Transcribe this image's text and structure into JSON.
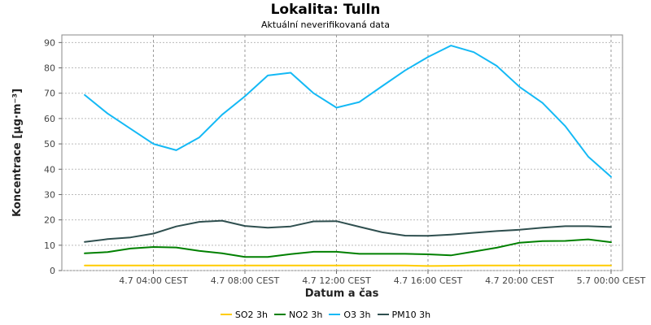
{
  "chart_data": {
    "type": "line",
    "title": "Lokalita: Tulln",
    "subtitle": "Aktuální neverifikovaná data",
    "xlabel": "Datum a čas",
    "ylabel": "Koncentrace [µg·m⁻³]",
    "ylim": [
      0,
      93
    ],
    "yticks": [
      0,
      10,
      20,
      30,
      40,
      50,
      60,
      70,
      80,
      90
    ],
    "xlim_hours": [
      0.0,
      24.5
    ],
    "x": [
      1,
      2,
      3,
      4,
      5,
      6,
      7,
      8,
      9,
      10,
      11,
      12,
      13,
      14,
      15,
      16,
      17,
      18,
      19,
      20,
      21,
      22,
      23,
      24
    ],
    "xtick_hours": [
      4,
      8,
      12,
      16,
      20,
      24
    ],
    "xticks": [
      "4.7 04:00 CEST",
      "4.7 08:00 CEST",
      "4.7 12:00 CEST",
      "4.7 16:00 CEST",
      "4.7 20:00 CEST",
      "5.7 00:00 CEST"
    ],
    "grid": true,
    "legend_position": "bottom",
    "series": [
      {
        "name": "SO2 3h",
        "color": "#ffcc00",
        "values": [
          2,
          2,
          2,
          2,
          2,
          2,
          2,
          2,
          2,
          2,
          2,
          2,
          2,
          2,
          2,
          1.8,
          1.9,
          2,
          2,
          2,
          2,
          2,
          2,
          2
        ]
      },
      {
        "name": "NO2 3h",
        "color": "#008000",
        "values": [
          6.8,
          7.3,
          8.7,
          9.3,
          9.1,
          7.8,
          6.8,
          5.4,
          5.4,
          6.5,
          7.4,
          7.4,
          6.6,
          6.6,
          6.6,
          6.4,
          6.0,
          7.5,
          9.0,
          11.0,
          11.6,
          11.7,
          12.3,
          11.2
        ]
      },
      {
        "name": "O3 3h",
        "color": "#14b9f5",
        "values": [
          69.3,
          62.0,
          56.0,
          50.0,
          47.5,
          52.5,
          61.5,
          68.8,
          77.0,
          78.1,
          70.0,
          64.3,
          66.5,
          72.8,
          79.0,
          84.3,
          88.8,
          86.2,
          80.8,
          72.5,
          66.2,
          57.0,
          45.0,
          37.0
        ]
      },
      {
        "name": "PM10 3h",
        "color": "#2f4f4f",
        "values": [
          11.3,
          12.4,
          13.1,
          14.6,
          17.4,
          19.2,
          19.7,
          17.6,
          16.9,
          17.4,
          19.4,
          19.5,
          17.3,
          15.1,
          13.8,
          13.7,
          14.2,
          14.9,
          15.6,
          16.1,
          16.9,
          17.5,
          17.5,
          17.2
        ]
      }
    ]
  }
}
